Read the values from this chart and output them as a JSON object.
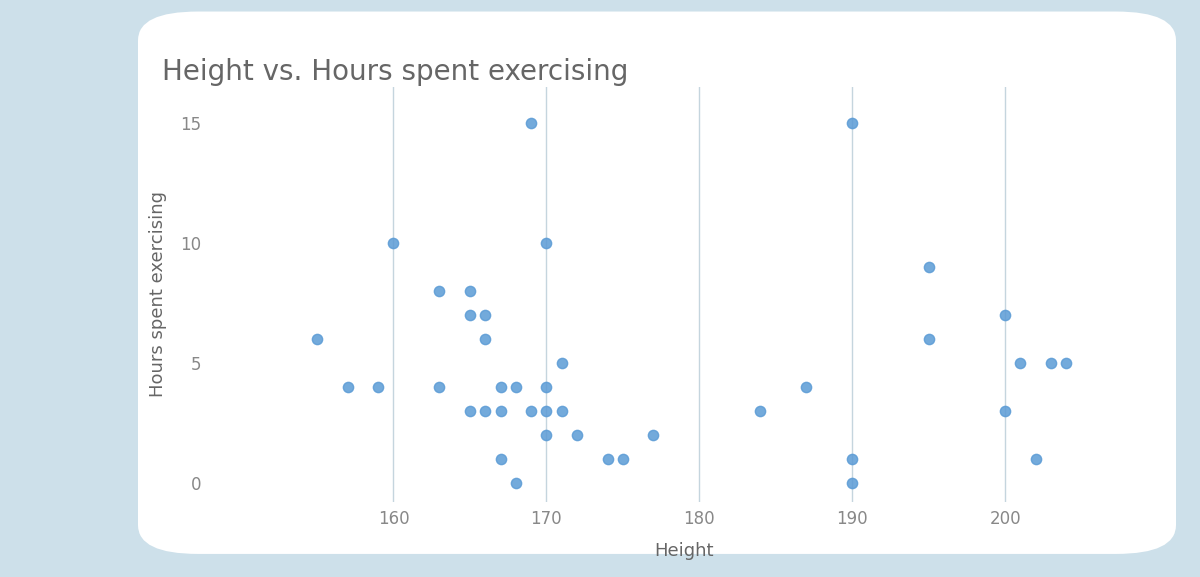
{
  "title": "Height vs. Hours spent exercising",
  "xlabel": "Height",
  "ylabel": "Hours spent exercising",
  "dot_color": "#5B9BD5",
  "background_outer": "#cde0ea",
  "background_card": "#FFFFFF",
  "xlim": [
    148,
    210
  ],
  "ylim": [
    -0.8,
    16.5
  ],
  "xticks": [
    160,
    170,
    180,
    190,
    200
  ],
  "yticks": [
    0,
    5,
    10,
    15
  ],
  "x": [
    155,
    157,
    159,
    160,
    163,
    163,
    165,
    165,
    165,
    166,
    166,
    166,
    167,
    167,
    167,
    168,
    168,
    169,
    169,
    170,
    170,
    170,
    170,
    171,
    171,
    172,
    174,
    175,
    177,
    184,
    187,
    190,
    190,
    190,
    195,
    195,
    200,
    200,
    201,
    202,
    203,
    204
  ],
  "y": [
    6,
    4,
    4,
    10,
    8,
    4,
    8,
    7,
    3,
    7,
    6,
    3,
    4,
    3,
    1,
    0,
    4,
    3,
    15,
    10,
    4,
    3,
    2,
    5,
    3,
    2,
    1,
    1,
    2,
    3,
    4,
    15,
    1,
    0,
    9,
    6,
    7,
    3,
    5,
    1,
    5,
    5
  ],
  "marker_size": 55,
  "title_fontsize": 20,
  "axis_fontsize": 13,
  "tick_fontsize": 12,
  "grid_color": "#c5d5de",
  "title_color": "#666666",
  "label_color": "#666666",
  "tick_color": "#888888"
}
